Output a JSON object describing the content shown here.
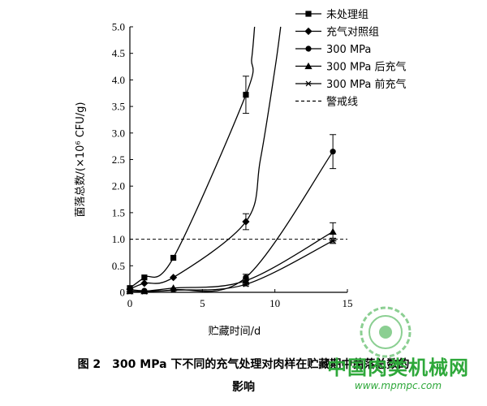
{
  "chart_data": {
    "type": "line",
    "xlabel": "贮藏时间/d",
    "ylabel": "菌落总数/(×10⁶ CFU/g)",
    "xlim": [
      0,
      15
    ],
    "ylim": [
      0,
      5.0
    ],
    "xticks": [
      0,
      5,
      10,
      15
    ],
    "yticks": [
      0,
      0.5,
      1.0,
      1.5,
      2.0,
      2.5,
      3.0,
      3.5,
      4.0,
      4.5,
      5.0
    ],
    "xtick_labels": [
      "0",
      "5",
      "10",
      "15"
    ],
    "ytick_labels": [
      "0",
      "0.5",
      "1.0",
      "1.5",
      "2.0",
      "2.5",
      "3.0",
      "3.5",
      "4.0",
      "4.5",
      "5.0"
    ],
    "legend_position": "top-right",
    "series": [
      {
        "name": "未处理组",
        "marker": "square",
        "x": [
          0,
          1,
          3,
          8
        ],
        "y": [
          0.08,
          0.28,
          0.65,
          3.72
        ],
        "err": [
          0,
          0,
          0,
          0.35
        ],
        "curve_extension": [
          [
            8.4,
            4.4
          ],
          [
            8.6,
            5.0
          ]
        ]
      },
      {
        "name": "充气对照组",
        "marker": "diamond",
        "x": [
          0,
          1,
          3,
          8
        ],
        "y": [
          0.06,
          0.17,
          0.28,
          1.33
        ],
        "err": [
          0,
          0,
          0,
          0.15
        ],
        "curve_extension": [
          [
            9.0,
            2.5
          ],
          [
            10.0,
            4.2
          ],
          [
            10.4,
            5.0
          ]
        ]
      },
      {
        "name": "300 MPa",
        "marker": "circle",
        "x": [
          0,
          1,
          3,
          8,
          14
        ],
        "y": [
          0.05,
          0.03,
          0.05,
          0.28,
          2.65
        ],
        "err": [
          0,
          0,
          0,
          0.06,
          0.32
        ]
      },
      {
        "name": "300 MPa 后充气",
        "marker": "triangle",
        "x": [
          0,
          1,
          3,
          8,
          14
        ],
        "y": [
          0.02,
          0.02,
          0.08,
          0.22,
          1.14
        ],
        "err": [
          0,
          0,
          0,
          0.04,
          0.17
        ]
      },
      {
        "name": "300 MPa 前充气",
        "marker": "asterisk",
        "x": [
          0,
          1,
          3,
          8,
          14
        ],
        "y": [
          0.01,
          0.01,
          0.04,
          0.15,
          0.97
        ],
        "err": [
          0,
          0,
          0,
          0.03,
          0.05
        ]
      }
    ],
    "warning_line": {
      "name": "警戒线",
      "y": 1.0
    }
  },
  "caption": {
    "line1": "图 2　300 MPa 下不同的充气处理对肉样在贮藏期中菌落总数的",
    "line2": "影响"
  },
  "watermark": {
    "title": "中国肉类机械网",
    "url": "www.mpmpc.com"
  }
}
